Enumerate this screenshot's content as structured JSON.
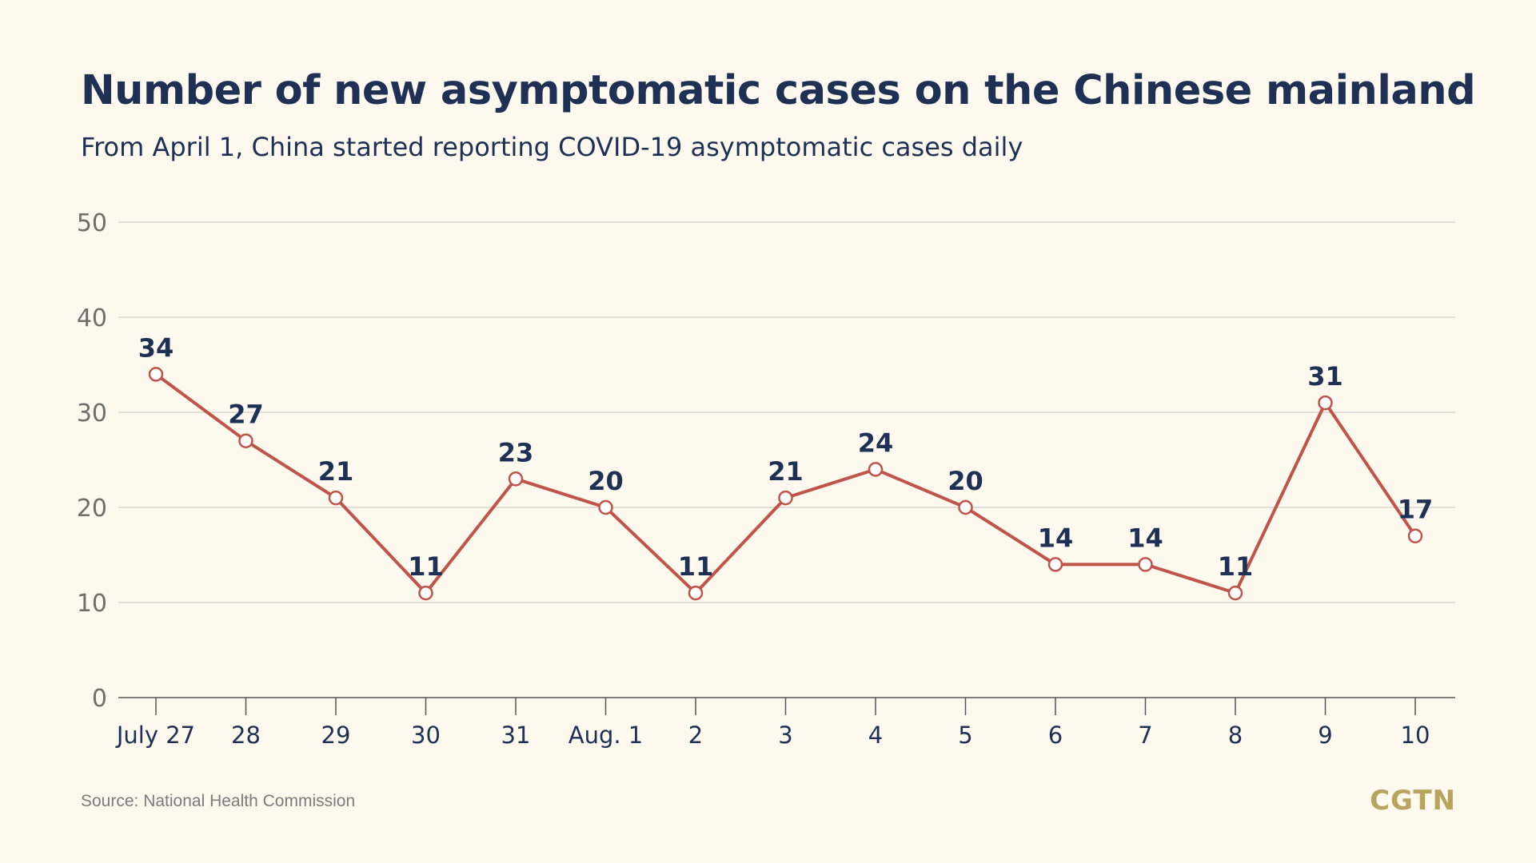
{
  "header": {
    "title": "Number of new asymptomatic cases on the Chinese mainland",
    "subtitle": "From April 1, China started reporting COVID-19 asymptomatic cases daily"
  },
  "footer": {
    "source": "Source: National Health Commission",
    "brand": "CGTN"
  },
  "colors": {
    "background": "#fdf9ee",
    "title": "#1f3055",
    "line": "#c0544a",
    "marker_fill": "#ffffff",
    "grid": "#d8d6cf",
    "axis_text": "#6e6e6a",
    "brand": "#b9a45e"
  },
  "chart_data": {
    "type": "line",
    "title": "Number of new asymptomatic cases on the Chinese mainland",
    "subtitle": "From April 1, China started reporting COVID-19 asymptomatic cases daily",
    "categories": [
      "July 27",
      "28",
      "29",
      "30",
      "31",
      "Aug. 1",
      "2",
      "3",
      "4",
      "5",
      "6",
      "7",
      "8",
      "9",
      "10"
    ],
    "series": [
      {
        "values": [
          34,
          27,
          21,
          11,
          23,
          20,
          11,
          21,
          24,
          20,
          14,
          14,
          11,
          31,
          17
        ]
      }
    ],
    "xlabel": "",
    "ylabel": "",
    "ylim": [
      0,
      50
    ],
    "yticks": [
      0,
      10,
      20,
      30,
      40,
      50
    ],
    "grid": true,
    "data_labels": true
  }
}
